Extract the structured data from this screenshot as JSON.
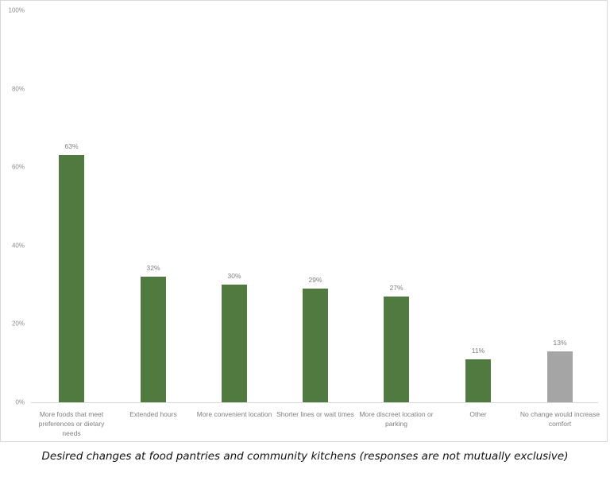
{
  "chart_data": {
    "type": "bar",
    "title": "Desired changes at food pantries and community kitchens (responses are not mutually exclusive)",
    "xlabel": "",
    "ylabel": "",
    "ylim": [
      0,
      100
    ],
    "yticks": [
      "0%",
      "20%",
      "40%",
      "60%",
      "80%",
      "100%"
    ],
    "grid": false,
    "legend": null,
    "categories": [
      "More foods that meet preferences or dietary needs",
      "Extended hours",
      "More convenient location",
      "Shorter lines or wait times",
      "More discreet location or parking",
      "Other",
      "No change would increase comfort"
    ],
    "values": [
      63,
      32,
      30,
      29,
      27,
      11,
      13
    ],
    "value_labels": [
      "63%",
      "32%",
      "30%",
      "29%",
      "27%",
      "11%",
      "13%"
    ],
    "colors": [
      "#507a3f",
      "#507a3f",
      "#507a3f",
      "#507a3f",
      "#507a3f",
      "#507a3f",
      "#a5a5a5"
    ]
  },
  "caption": "Desired changes at food pantries and community kitchens (responses are not mutually exclusive)"
}
